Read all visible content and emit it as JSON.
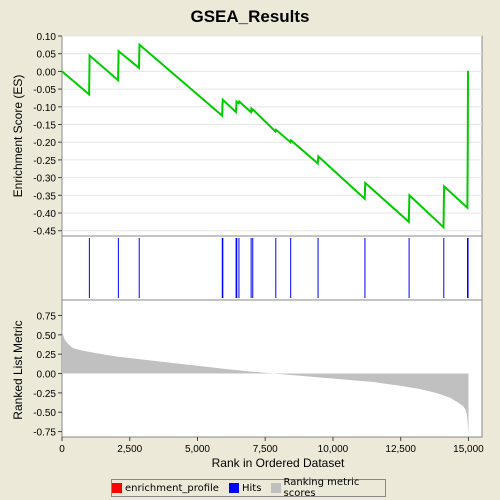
{
  "chart_data": {
    "type": "line",
    "title": "GSEA_Results",
    "xlabel": "Rank in Ordered Dataset",
    "xlim": [
      0,
      15500
    ],
    "xticks": [
      0,
      2500,
      5000,
      7500,
      10000,
      12500,
      15000
    ],
    "xtick_labels": [
      "0",
      "2,500",
      "5,000",
      "7,500",
      "10,000",
      "12,500",
      "15,000"
    ],
    "enrichment": {
      "ylabel": "Enrichment Score (ES)",
      "ylim": [
        -0.465,
        0.1
      ],
      "yticks": [
        0.1,
        0.05,
        0.0,
        -0.05,
        -0.1,
        -0.15,
        -0.2,
        -0.25,
        -0.3,
        -0.35,
        -0.4,
        -0.45
      ],
      "ytick_labels": [
        "0.10",
        "0.05",
        "0.00",
        "-0.05",
        "-0.10",
        "-0.15",
        "-0.20",
        "-0.25",
        "-0.30",
        "-0.35",
        "-0.40",
        "-0.45"
      ],
      "series_name": "enrichment_profile",
      "color": "#00cc00",
      "x": [
        0,
        1000,
        1020,
        2070,
        2090,
        2840,
        2860,
        5910,
        5930,
        6420,
        6440,
        6520,
        6540,
        6970,
        6990,
        7030,
        7050,
        7880,
        7900,
        8430,
        8450,
        9440,
        9460,
        11170,
        11190,
        12800,
        12820,
        14080,
        14100,
        14960,
        14975,
        14985
      ],
      "y": [
        0.0,
        -0.065,
        0.045,
        -0.025,
        0.057,
        0.01,
        0.075,
        -0.125,
        -0.08,
        -0.115,
        -0.085,
        -0.09,
        -0.085,
        -0.115,
        -0.105,
        -0.11,
        -0.108,
        -0.17,
        -0.165,
        -0.2,
        -0.195,
        -0.26,
        -0.24,
        -0.36,
        -0.315,
        -0.425,
        -0.35,
        -0.44,
        -0.325,
        -0.385,
        -0.195,
        0.002
      ]
    },
    "hits": {
      "label": "Hits",
      "color": "#0000ff",
      "positions": [
        1010,
        2080,
        2850,
        5915,
        5935,
        6425,
        6450,
        6530,
        6980,
        7040,
        7890,
        8440,
        9450,
        11180,
        12810,
        14090,
        14965,
        14985
      ]
    },
    "ranking": {
      "ylabel": "Ranked List Metric",
      "series_name": "Ranking metric scores",
      "color": "#c0c0c0",
      "ylim": [
        -0.82,
        0.95
      ],
      "yticks": [
        0.75,
        0.5,
        0.25,
        0.0,
        -0.25,
        -0.5,
        -0.75
      ],
      "ytick_labels": [
        "0.75",
        "0.50",
        "0.25",
        "0.00",
        "-0.25",
        "-0.50",
        "-0.75"
      ],
      "x": [
        0,
        40,
        100,
        200,
        400,
        700,
        1000,
        1500,
        2000,
        3000,
        4000,
        5000,
        6000,
        7000,
        7800,
        8500,
        9500,
        10500,
        11500,
        12500,
        13200,
        13800,
        14300,
        14600,
        14800,
        14900,
        14950,
        15000
      ],
      "y": [
        0.58,
        0.5,
        0.44,
        0.39,
        0.33,
        0.3,
        0.28,
        0.25,
        0.22,
        0.18,
        0.14,
        0.1,
        0.06,
        0.025,
        0.0,
        -0.02,
        -0.05,
        -0.08,
        -0.11,
        -0.16,
        -0.2,
        -0.25,
        -0.31,
        -0.37,
        -0.42,
        -0.47,
        -0.55,
        -0.78
      ]
    },
    "legend": [
      {
        "label": "enrichment_profile",
        "color": "#ff0000"
      },
      {
        "label": "Hits",
        "color": "#0000ff"
      },
      {
        "label": "Ranking metric scores",
        "color": "#c0c0c0"
      }
    ],
    "legend_placement": "bottom",
    "background": "#ece9d8"
  }
}
